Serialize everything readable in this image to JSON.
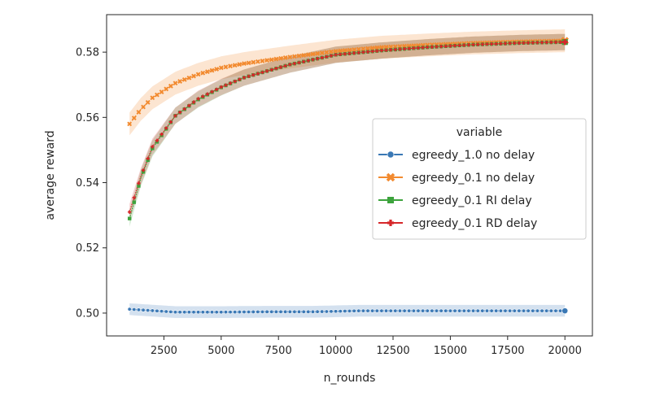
{
  "chart_data": {
    "type": "line",
    "title": "",
    "xlabel": "n_rounds",
    "ylabel": "average reward",
    "xlim": [
      0,
      21200
    ],
    "ylim": [
      0.493,
      0.5915
    ],
    "xticks": [
      2500,
      5000,
      7500,
      10000,
      12500,
      15000,
      17500,
      20000
    ],
    "yticks": [
      0.5,
      0.52,
      0.54,
      0.56,
      0.58
    ],
    "xtick_labels": [
      "2500",
      "5000",
      "7500",
      "10000",
      "12500",
      "15000",
      "17500",
      "20000"
    ],
    "ytick_labels": [
      "0.50",
      "0.52",
      "0.54",
      "0.56",
      "0.58"
    ],
    "grid": false,
    "legend": {
      "title": "variable",
      "placement": "center-right"
    },
    "series": [
      {
        "name": "egreedy_1.0 no delay",
        "color": "#3a78b5",
        "marker": "circle",
        "x": [
          1000,
          3000,
          5000,
          7000,
          9000,
          11000,
          13000,
          15000,
          17000,
          20000
        ],
        "values": [
          0.5012,
          0.5003,
          0.5003,
          0.5004,
          0.5004,
          0.5007,
          0.5007,
          0.5007,
          0.5007,
          0.5007
        ],
        "band": 0.0018
      },
      {
        "name": "egreedy_0.1 no delay",
        "color": "#f28a2f",
        "marker": "x",
        "x": [
          1000,
          1500,
          2000,
          3000,
          4000,
          5000,
          6000,
          8000,
          10000,
          12000,
          14000,
          16000,
          18000,
          20000
        ],
        "values": [
          0.558,
          0.5625,
          0.566,
          0.5705,
          0.5732,
          0.5752,
          0.5765,
          0.5785,
          0.5803,
          0.5815,
          0.5822,
          0.5828,
          0.5832,
          0.5835
        ],
        "band": 0.0035
      },
      {
        "name": "egreedy_0.1 RI delay",
        "color": "#3da33d",
        "marker": "square",
        "x": [
          1000,
          1500,
          2000,
          3000,
          4000,
          5000,
          6000,
          8000,
          10000,
          12000,
          14000,
          16000,
          18000,
          20000
        ],
        "values": [
          0.529,
          0.5415,
          0.5505,
          0.5605,
          0.5655,
          0.5692,
          0.5722,
          0.5762,
          0.5792,
          0.5805,
          0.5815,
          0.5823,
          0.5828,
          0.5831
        ],
        "band": 0.0025
      },
      {
        "name": "egreedy_0.1 RD delay",
        "color": "#d6272a",
        "marker": "plus",
        "x": [
          1000,
          1500,
          2000,
          3000,
          4000,
          5000,
          6000,
          8000,
          10000,
          12000,
          14000,
          16000,
          18000,
          20000
        ],
        "values": [
          0.531,
          0.542,
          0.551,
          0.5605,
          0.5657,
          0.5693,
          0.5722,
          0.5762,
          0.5792,
          0.5805,
          0.5815,
          0.5823,
          0.5828,
          0.5831
        ],
        "band": 0.0025
      }
    ]
  }
}
